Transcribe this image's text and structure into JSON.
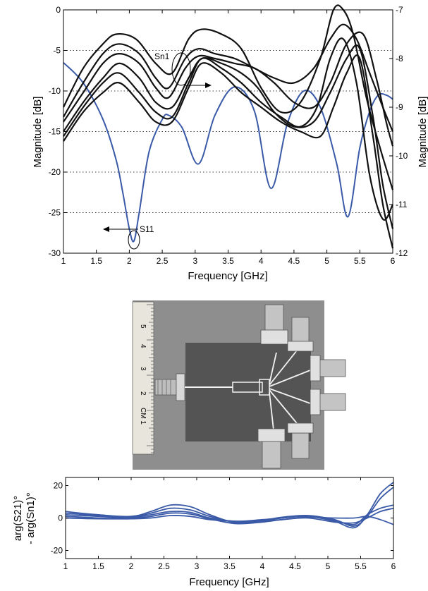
{
  "chart_data": [
    {
      "type": "line",
      "xlabel": "Frequency [GHz]",
      "ylabel_left": "Magnitude [dB]",
      "ylabel_right": "Magnitude [dB]",
      "xlim": [
        1,
        6
      ],
      "ylim_left": [
        -30,
        0
      ],
      "ylim_right": [
        -12,
        -7
      ],
      "x_ticks": [
        1,
        1.5,
        2,
        2.5,
        3,
        3.5,
        4,
        4.5,
        5,
        5.5,
        6
      ],
      "x_tick_labels": [
        "1",
        "1.5",
        "2",
        "2.5",
        "3",
        "3.5",
        "4",
        "4.5",
        "5",
        "5.5",
        "6"
      ],
      "y_ticks_left": [
        0,
        -5,
        -10,
        -15,
        -20,
        -25,
        -30
      ],
      "y_tick_labels_left": [
        "0",
        "-5",
        "-10",
        "-15",
        "-20",
        "-25",
        "-30"
      ],
      "y_ticks_right": [
        -7,
        -8,
        -9,
        -10,
        -11,
        -12
      ],
      "y_tick_labels_right": [
        "-7",
        "-8",
        "-9",
        "-10",
        "-11",
        "-12"
      ],
      "grid": "horizontal dotted",
      "colors": {
        "S11": "#3a5aa8",
        "Sn1": "#111111"
      },
      "annotations": [
        {
          "label": "S11",
          "arrow": "left",
          "axis": "left",
          "x": 2.05,
          "y": -28
        },
        {
          "label": "Sn1",
          "arrow": "right",
          "axis": "right",
          "x": 2.6,
          "y": -8.2
        }
      ],
      "series": [
        {
          "axis": "left",
          "x": [
            1.0,
            1.3,
            1.6,
            1.8,
            1.9,
            2.0,
            2.07,
            2.15,
            2.3,
            2.5,
            2.6,
            2.8,
            3.05,
            3.3,
            3.6,
            3.9,
            4.15,
            4.4,
            4.65,
            4.9,
            5.15,
            5.32,
            5.5,
            5.65,
            5.78,
            5.9,
            6.0
          ],
          "y": [
            -6.5,
            -9.0,
            -13.5,
            -18.5,
            -22.5,
            -27.0,
            -28.5,
            -25.0,
            -17.5,
            -13.5,
            -13.0,
            -14.5,
            -19.0,
            -13.0,
            -9.5,
            -12.5,
            -22.0,
            -14.0,
            -10.0,
            -12.0,
            -19.0,
            -25.5,
            -17.0,
            -12.5,
            -10.5,
            -10.5,
            -11.0
          ]
        },
        {
          "axis": "right",
          "x": [
            1.0,
            1.3,
            1.6,
            1.8,
            2.1,
            2.4,
            2.65,
            2.9,
            3.1,
            3.4,
            3.7,
            4.0,
            4.3,
            4.6,
            4.9,
            5.1,
            5.25,
            5.4,
            5.6,
            5.8,
            6.0
          ],
          "y": [
            -9.0,
            -8.2,
            -7.7,
            -7.5,
            -7.6,
            -8.1,
            -8.3,
            -7.6,
            -7.4,
            -7.5,
            -7.8,
            -8.6,
            -9.1,
            -8.9,
            -8.0,
            -7.0,
            -7.0,
            -7.5,
            -8.8,
            -9.8,
            -10.7
          ]
        },
        {
          "axis": "right",
          "x": [
            1.0,
            1.3,
            1.6,
            1.85,
            2.15,
            2.4,
            2.6,
            2.85,
            3.05,
            3.3,
            3.6,
            3.9,
            4.2,
            4.5,
            4.8,
            5.05,
            5.25,
            5.45,
            5.65,
            5.85,
            6.0
          ],
          "y": [
            -9.2,
            -8.5,
            -7.9,
            -7.7,
            -7.9,
            -8.4,
            -8.6,
            -8.0,
            -7.8,
            -7.9,
            -8.0,
            -8.2,
            -8.4,
            -8.5,
            -8.2,
            -7.6,
            -7.3,
            -7.6,
            -8.3,
            -9.0,
            -9.5
          ]
        },
        {
          "axis": "right",
          "x": [
            1.0,
            1.3,
            1.6,
            1.85,
            2.15,
            2.4,
            2.6,
            2.85,
            3.05,
            3.3,
            3.6,
            3.9,
            4.2,
            4.5,
            4.8,
            5.05,
            5.3,
            5.55,
            5.75,
            5.9,
            6.0
          ],
          "y": [
            -9.3,
            -8.7,
            -8.1,
            -7.9,
            -8.1,
            -8.6,
            -8.8,
            -8.2,
            -7.95,
            -8.0,
            -8.1,
            -8.2,
            -8.5,
            -8.9,
            -9.0,
            -8.5,
            -7.7,
            -7.5,
            -8.4,
            -9.3,
            -9.8
          ]
        },
        {
          "axis": "right",
          "x": [
            1.0,
            1.3,
            1.6,
            1.85,
            2.15,
            2.4,
            2.65,
            2.9,
            3.1,
            3.4,
            3.7,
            3.95,
            4.2,
            4.5,
            4.8,
            5.05,
            5.3,
            5.5,
            5.7,
            5.85,
            6.0
          ],
          "y": [
            -9.5,
            -8.9,
            -8.4,
            -8.1,
            -8.4,
            -8.9,
            -9.0,
            -8.4,
            -8.0,
            -8.1,
            -8.3,
            -8.6,
            -9.1,
            -9.4,
            -9.3,
            -8.7,
            -8.0,
            -7.8,
            -9.2,
            -10.6,
            -11.5
          ],
          "ignored": false
        },
        {
          "axis": "right",
          "x": [
            1.0,
            1.3,
            1.6,
            1.85,
            2.15,
            2.4,
            2.65,
            2.9,
            3.1,
            3.4,
            3.7,
            4.0,
            4.3,
            4.6,
            4.85,
            5.05,
            5.25,
            5.45,
            5.65,
            5.85,
            6.0
          ],
          "y": [
            -9.6,
            -9.0,
            -8.5,
            -8.3,
            -8.7,
            -9.1,
            -9.2,
            -8.5,
            -8.0,
            -8.2,
            -8.5,
            -8.9,
            -9.2,
            -9.4,
            -9.0,
            -8.0,
            -7.6,
            -8.5,
            -10.4,
            -11.3,
            -11.0
          ]
        },
        {
          "axis": "right",
          "x": [
            1.0,
            1.3,
            1.6,
            1.85,
            2.15,
            2.4,
            2.65,
            2.9,
            3.1,
            3.4,
            3.7,
            4.0,
            4.3,
            4.6,
            4.9,
            5.1,
            5.3,
            5.5,
            5.7,
            5.85,
            6.0
          ],
          "y": [
            -9.7,
            -9.1,
            -8.7,
            -8.5,
            -8.9,
            -9.3,
            -9.3,
            -8.6,
            -8.1,
            -8.3,
            -8.7,
            -9.0,
            -9.3,
            -9.5,
            -9.6,
            -9.0,
            -8.3,
            -8.0,
            -9.6,
            -11.0,
            -11.9
          ]
        }
      ]
    },
    {
      "type": "image",
      "ruler_labels": [
        "5",
        "4",
        "3",
        "2",
        "CM 1"
      ]
    },
    {
      "type": "line",
      "xlabel": "Frequency [GHz]",
      "ylabel": "arg(S21)°\n- arg(Sn1)°",
      "ylabel_lines": [
        "arg(S21)°",
        "- arg(Sn1)°"
      ],
      "xlim": [
        1,
        6
      ],
      "ylim": [
        -25,
        25
      ],
      "x_ticks": [
        1,
        1.5,
        2,
        2.5,
        3,
        3.5,
        4,
        4.5,
        5,
        5.5,
        6
      ],
      "x_tick_labels": [
        "1",
        "1.5",
        "2",
        "2.5",
        "3",
        "3.5",
        "4",
        "4.5",
        "5",
        "5.5",
        "6"
      ],
      "y_ticks": [
        20,
        0,
        -20
      ],
      "y_tick_labels": [
        "20",
        "0",
        "-20"
      ],
      "colors": {
        "phase": "#3a5aa8"
      },
      "series": [
        {
          "x": [
            1,
            1.5,
            2,
            2.3,
            2.6,
            2.9,
            3.2,
            3.6,
            4,
            4.3,
            4.7,
            5.1,
            5.4,
            5.6,
            5.8,
            6
          ],
          "y": [
            4,
            2,
            1,
            4,
            8,
            7,
            2,
            -3,
            -2,
            0,
            1,
            -2,
            -6,
            2,
            15,
            22
          ]
        },
        {
          "x": [
            1,
            1.5,
            2,
            2.3,
            2.6,
            2.9,
            3.2,
            3.6,
            4,
            4.3,
            4.7,
            5.1,
            5.4,
            5.6,
            5.8,
            6
          ],
          "y": [
            3,
            1.5,
            0.5,
            3,
            6,
            5,
            1,
            -2.5,
            -1.5,
            0.5,
            1.5,
            -1,
            -5,
            1,
            12,
            19
          ]
        },
        {
          "x": [
            1,
            1.5,
            2,
            2.3,
            2.6,
            2.9,
            3.2,
            3.6,
            4,
            4.3,
            4.7,
            5.1,
            5.4,
            5.6,
            5.8,
            6
          ],
          "y": [
            2,
            1,
            0,
            2,
            4,
            3.5,
            0,
            -2,
            -1,
            0,
            1,
            -1.5,
            -4,
            2,
            6,
            8
          ]
        },
        {
          "x": [
            1,
            1.5,
            2,
            2.3,
            2.6,
            2.9,
            3.2,
            3.6,
            4,
            4.3,
            4.7,
            5.1,
            5.4,
            5.6,
            5.8,
            6
          ],
          "y": [
            1,
            0,
            -0.5,
            1,
            3,
            2.5,
            -0.5,
            -3.5,
            -2.5,
            -1,
            0,
            -2.5,
            -3,
            0,
            4,
            6
          ]
        },
        {
          "x": [
            1,
            1.5,
            2,
            2.3,
            2.6,
            2.9,
            3.2,
            3.6,
            4,
            4.3,
            4.7,
            5.1,
            5.4,
            5.6,
            5.8,
            6
          ],
          "y": [
            0,
            -0.5,
            -0.5,
            0,
            1.5,
            1,
            -1,
            -2,
            -2,
            -1,
            0.5,
            0,
            0,
            1,
            -1,
            -4
          ]
        }
      ]
    }
  ]
}
